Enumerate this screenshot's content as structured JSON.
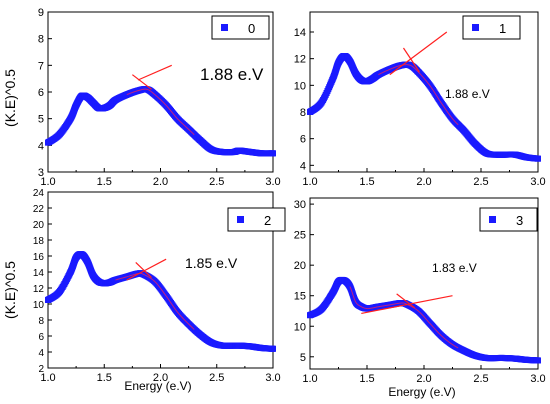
{
  "figure": {
    "shared_ylabel": "(K.E)^0.5",
    "shared_xlabel": "Energy (e.V)"
  },
  "colors": {
    "series": "#1a1aff",
    "fit": "#ff2020",
    "fitcore": "#c02080",
    "axis": "#000000"
  },
  "chart_data": [
    {
      "type": "scatter",
      "legend": "0",
      "annotation": "1.88 e.V",
      "xlim": [
        1.0,
        3.0
      ],
      "ylim": [
        3,
        9
      ],
      "x_ticks": [
        "1.0",
        "1.5",
        "2.0",
        "2.5",
        "3.0"
      ],
      "y_ticks": [
        "3",
        "4",
        "5",
        "6",
        "7",
        "8",
        "9"
      ],
      "series": [
        {
          "x": [
            1.0,
            1.1,
            1.2,
            1.25,
            1.3,
            1.35,
            1.4,
            1.45,
            1.5,
            1.55,
            1.6,
            1.7,
            1.8,
            1.88,
            1.95,
            2.05,
            2.15,
            2.25,
            2.35,
            2.45,
            2.55,
            2.65,
            2.7,
            2.8,
            2.9,
            3.0
          ],
          "y": [
            4.1,
            4.4,
            5.0,
            5.5,
            5.85,
            5.8,
            5.6,
            5.4,
            5.4,
            5.5,
            5.7,
            5.9,
            6.05,
            6.1,
            5.9,
            5.5,
            5.0,
            4.6,
            4.2,
            3.85,
            3.75,
            3.75,
            3.8,
            3.75,
            3.7,
            3.7
          ]
        }
      ],
      "tangent": {
        "x": [
          1.8,
          2.1
        ],
        "y": [
          6.45,
          7.0
        ]
      },
      "tangent2": {
        "x": [
          1.75,
          1.92
        ],
        "y": [
          6.65,
          6.1
        ]
      }
    },
    {
      "type": "scatter",
      "legend": "1",
      "annotation": "1.88 e.V",
      "xlim": [
        1.0,
        3.0
      ],
      "ylim": [
        3.5,
        15.5
      ],
      "x_ticks": [
        "1.0",
        "1.5",
        "2.0",
        "2.5",
        "3.0"
      ],
      "y_ticks": [
        "4",
        "6",
        "8",
        "10",
        "12",
        "14"
      ],
      "series": [
        {
          "x": [
            1.0,
            1.1,
            1.2,
            1.25,
            1.3,
            1.35,
            1.4,
            1.45,
            1.5,
            1.55,
            1.6,
            1.7,
            1.8,
            1.88,
            1.95,
            2.05,
            2.15,
            2.25,
            2.35,
            2.45,
            2.55,
            2.65,
            2.7,
            2.8,
            2.9,
            3.0
          ],
          "y": [
            8.0,
            8.7,
            10.5,
            11.7,
            12.2,
            11.8,
            10.9,
            10.4,
            10.3,
            10.5,
            10.8,
            11.2,
            11.5,
            11.5,
            11.0,
            10.0,
            8.7,
            7.5,
            6.6,
            5.6,
            4.9,
            4.8,
            4.8,
            4.8,
            4.6,
            4.5
          ]
        }
      ],
      "tangent": {
        "x": [
          1.7,
          2.2
        ],
        "y": [
          10.8,
          14.0
        ]
      },
      "tangent2": {
        "x": [
          1.82,
          1.96
        ],
        "y": [
          12.8,
          11.0
        ]
      }
    },
    {
      "type": "scatter",
      "legend": "2",
      "annotation": "1.85 e.V",
      "xlim": [
        1.0,
        3.0
      ],
      "ylim": [
        2,
        24
      ],
      "x_ticks": [
        "1.0",
        "1.5",
        "2.0",
        "2.5",
        "3.0"
      ],
      "y_ticks": [
        "2",
        "4",
        "6",
        "8",
        "10",
        "12",
        "14",
        "16",
        "18",
        "20",
        "22",
        "24"
      ],
      "series": [
        {
          "x": [
            1.0,
            1.1,
            1.2,
            1.25,
            1.3,
            1.35,
            1.4,
            1.45,
            1.5,
            1.55,
            1.6,
            1.7,
            1.8,
            1.85,
            1.95,
            2.05,
            2.15,
            2.25,
            2.35,
            2.45,
            2.55,
            2.65,
            2.7,
            2.8,
            2.9,
            3.0
          ],
          "y": [
            10.5,
            11.5,
            14.0,
            15.8,
            16.2,
            15.3,
            13.6,
            12.8,
            12.6,
            12.7,
            13.0,
            13.4,
            13.8,
            13.7,
            12.8,
            11.0,
            9.0,
            7.5,
            6.2,
            5.2,
            4.8,
            4.8,
            4.8,
            4.7,
            4.5,
            4.4
          ]
        }
      ],
      "tangent": {
        "x": [
          1.7,
          2.05
        ],
        "y": [
          13.0,
          15.6
        ]
      },
      "tangent2": {
        "x": [
          1.78,
          1.92
        ],
        "y": [
          15.2,
          13.3
        ]
      }
    },
    {
      "type": "scatter",
      "legend": "3",
      "annotation": "1.83 e.V",
      "xlim": [
        1.0,
        3.0
      ],
      "ylim": [
        3,
        31
      ],
      "x_ticks": [
        "1.0",
        "1.5",
        "2.0",
        "2.5",
        "3.0"
      ],
      "y_ticks": [
        "5",
        "10",
        "15",
        "20",
        "25",
        "30"
      ],
      "series": [
        {
          "x": [
            1.0,
            1.1,
            1.2,
            1.25,
            1.3,
            1.35,
            1.4,
            1.45,
            1.5,
            1.55,
            1.6,
            1.7,
            1.8,
            1.85,
            1.95,
            2.05,
            2.15,
            2.25,
            2.35,
            2.45,
            2.55,
            2.65,
            2.7,
            2.8,
            2.9,
            3.0
          ],
          "y": [
            11.8,
            12.8,
            15.5,
            17.3,
            17.5,
            16.5,
            14.0,
            13.2,
            12.9,
            13.0,
            13.2,
            13.5,
            13.8,
            13.6,
            12.5,
            10.5,
            8.5,
            7.0,
            6.0,
            5.2,
            4.8,
            4.8,
            4.8,
            4.7,
            4.5,
            4.4
          ]
        }
      ],
      "tangent": {
        "x": [
          1.45,
          2.25
        ],
        "y": [
          12.1,
          15.0
        ]
      },
      "tangent2": {
        "x": [
          1.76,
          1.92
        ],
        "y": [
          15.3,
          13.0
        ]
      }
    }
  ]
}
